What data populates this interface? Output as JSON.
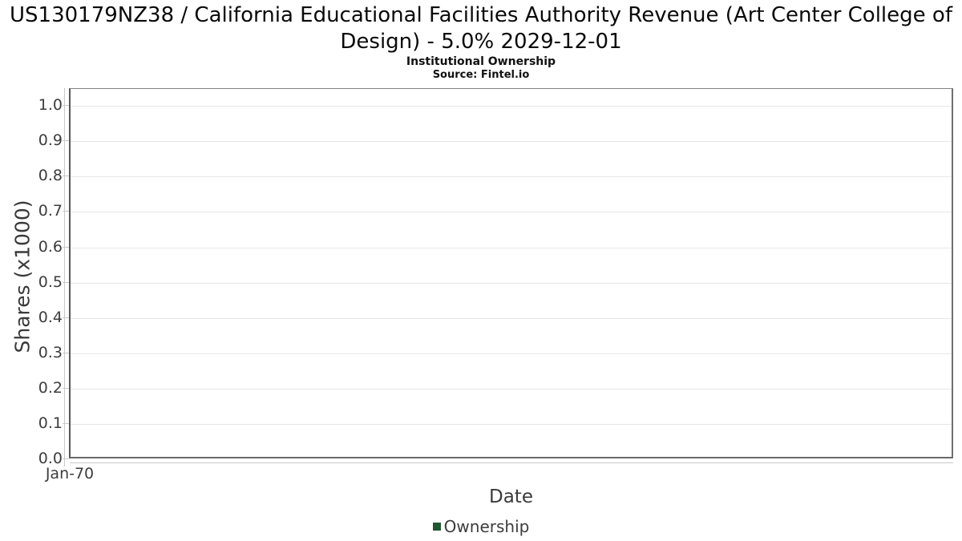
{
  "chart_data": {
    "type": "line",
    "title": "US130179NZ38 / California Educational Facilities Authority Revenue (Art Center College of Design) - 5.0% 2029-12-01",
    "subtitle": "Institutional Ownership",
    "source": "Source: Fintel.io",
    "xlabel": "Date",
    "ylabel": "Shares (x1000)",
    "x_tick_labels": [
      "Jan-70"
    ],
    "y_tick_labels": [
      "1.0",
      "0.9",
      "0.8",
      "0.7",
      "0.6",
      "0.5",
      "0.4",
      "0.3",
      "0.2",
      "0.1",
      "0.0"
    ],
    "ylim": [
      0.0,
      1.05
    ],
    "grid": "horizontal",
    "legend_position": "bottom",
    "series": [
      {
        "name": "Ownership",
        "marker": "square",
        "color": "#225532",
        "x": [],
        "values": []
      }
    ],
    "note": "chart contains no plotted data points; empty plot with single x tick at Jan-70"
  }
}
